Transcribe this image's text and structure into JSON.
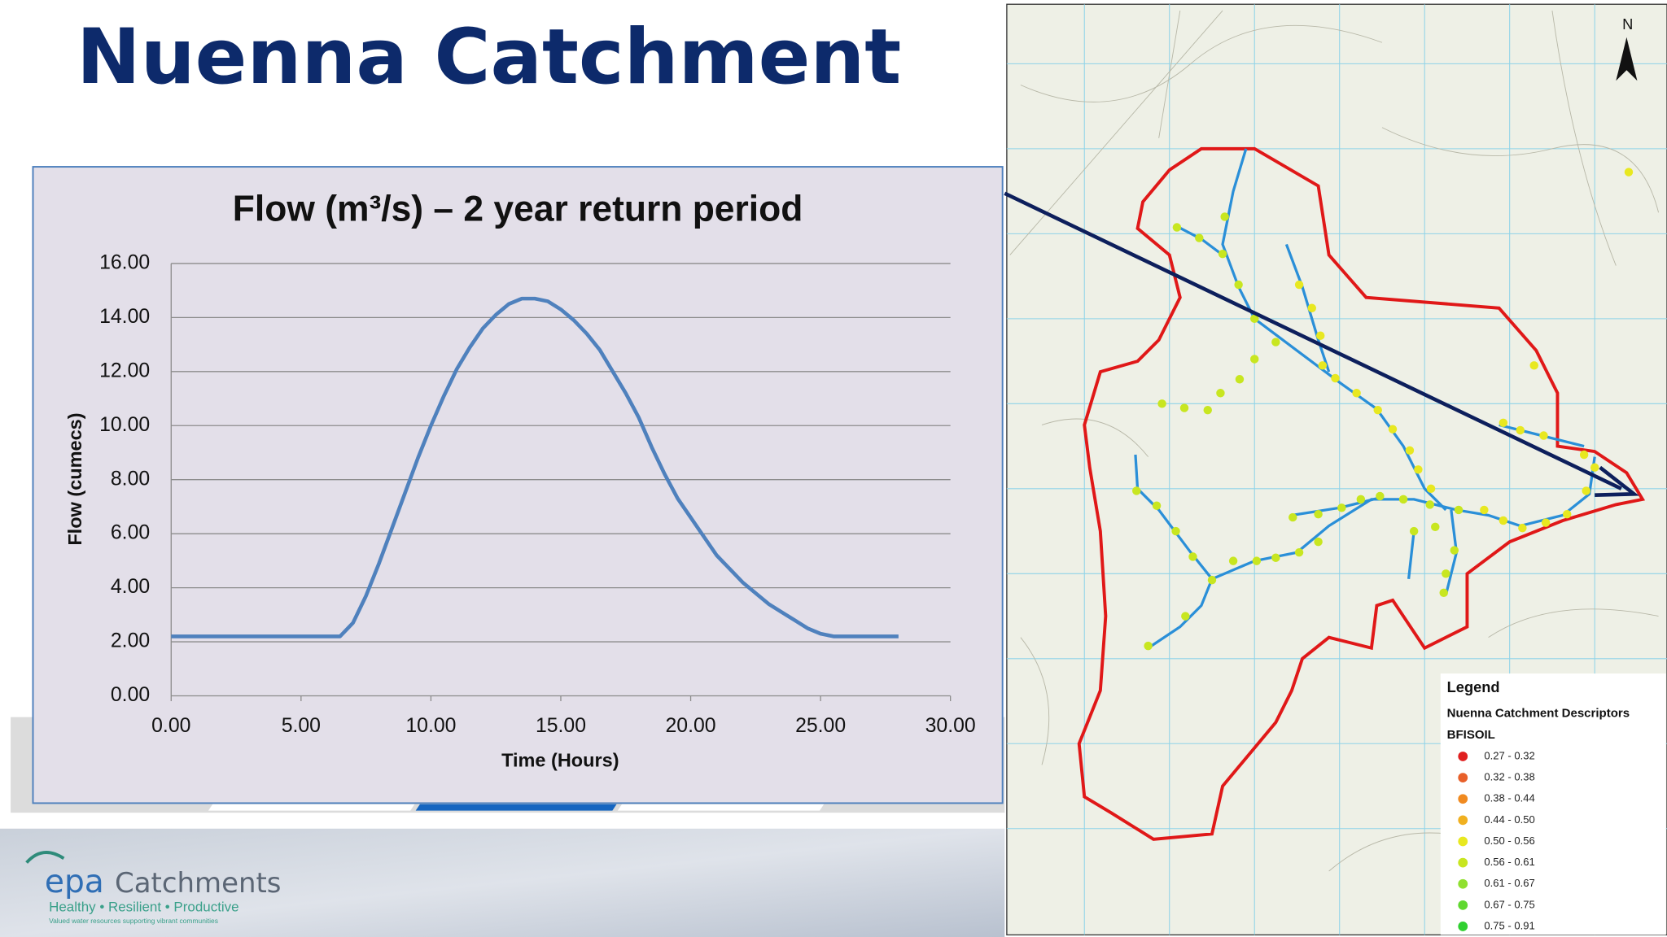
{
  "title": "Nuenna Catchment",
  "chart_data": {
    "type": "line",
    "title": "Flow (m³/s) – 2 year return period",
    "x_label": "Time (Hours)",
    "y_label": "Flow (cumecs)",
    "x": [
      0,
      6.5,
      7,
      7.5,
      8,
      8.5,
      9,
      9.5,
      10,
      10.5,
      11,
      11.5,
      12,
      12.5,
      13,
      13.5,
      14,
      14.5,
      15,
      15.5,
      16,
      16.5,
      17,
      17.5,
      18,
      18.5,
      19,
      19.5,
      20,
      20.5,
      21,
      21.5,
      22,
      22.5,
      23,
      23.5,
      24,
      24.5,
      25,
      25.5,
      26,
      28
    ],
    "values": [
      2.2,
      2.2,
      2.7,
      3.7,
      4.9,
      6.2,
      7.5,
      8.8,
      10.0,
      11.1,
      12.1,
      12.9,
      13.6,
      14.1,
      14.5,
      14.7,
      14.7,
      14.6,
      14.3,
      13.9,
      13.4,
      12.8,
      12.0,
      11.2,
      10.3,
      9.2,
      8.2,
      7.3,
      6.6,
      5.9,
      5.2,
      4.7,
      4.2,
      3.8,
      3.4,
      3.1,
      2.8,
      2.5,
      2.3,
      2.2,
      2.2,
      2.2
    ],
    "color": "#4f81bd",
    "xlim": [
      0,
      30
    ],
    "xticks": [
      {
        "value": 0,
        "label": "0.00"
      },
      {
        "value": 5,
        "label": "5.00"
      },
      {
        "value": 10,
        "label": "10.00"
      },
      {
        "value": 15,
        "label": "15.00"
      },
      {
        "value": 20,
        "label": "20.00"
      },
      {
        "value": 25,
        "label": "25.00"
      },
      {
        "value": 30,
        "label": "30.00"
      }
    ],
    "ylim": [
      0,
      16
    ],
    "yticks": [
      {
        "value": 0,
        "label": "0.00"
      },
      {
        "value": 2,
        "label": "2.00"
      },
      {
        "value": 4,
        "label": "4.00"
      },
      {
        "value": 6,
        "label": "6.00"
      },
      {
        "value": 8,
        "label": "8.00"
      },
      {
        "value": 10,
        "label": "10.00"
      },
      {
        "value": 12,
        "label": "12.00"
      },
      {
        "value": 14,
        "label": "14.00"
      },
      {
        "value": 16,
        "label": "16.00"
      }
    ],
    "grid": true
  },
  "map": {
    "north_label": "N",
    "legend": {
      "title": "Legend",
      "subtitle": "Nuenna Catchment Descriptors",
      "field": "BFISOIL",
      "classes": [
        {
          "label": "0.27 - 0.32",
          "color": "#e02020"
        },
        {
          "label": "0.32 - 0.38",
          "color": "#e8602a"
        },
        {
          "label": "0.38 - 0.44",
          "color": "#f08a20"
        },
        {
          "label": "0.44 - 0.50",
          "color": "#f0b020"
        },
        {
          "label": "0.50 - 0.56",
          "color": "#e8e820"
        },
        {
          "label": "0.56 - 0.61",
          "color": "#c8e620"
        },
        {
          "label": "0.61 - 0.67",
          "color": "#90e030"
        },
        {
          "label": "0.67 - 0.75",
          "color": "#60d830"
        },
        {
          "label": "0.75 - 0.91",
          "color": "#30d030"
        }
      ]
    }
  },
  "logo": {
    "brand_prefix": "epa",
    "brand": "Catchments",
    "tagline": "Healthy • Resilient • Productive",
    "subline": "Valued water resources supporting vibrant communities"
  }
}
